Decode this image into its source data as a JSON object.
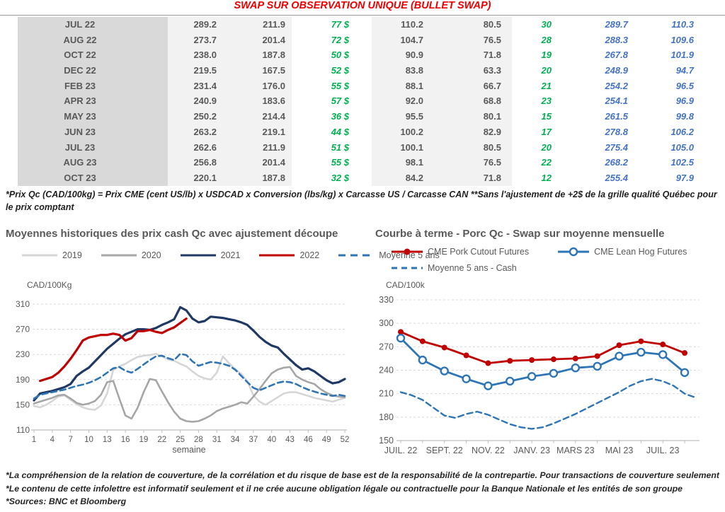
{
  "title": "SWAP SUR OBSERVATION UNIQUE (BULLET SWAP)",
  "colors": {
    "title_red": "#EE0000",
    "green": "#00B050",
    "blue": "#4472C4",
    "table_month_bg": "#D9D9D9",
    "table_light_bg": "#F2F2F2",
    "table_text": "#595959",
    "grid": "#D9D9D9",
    "axis": "#BFBFBF"
  },
  "table": {
    "rows": [
      [
        "JUL 22",
        "289.2",
        "211.9",
        "77 $",
        "110.2",
        "80.5",
        "30",
        "289.7",
        "110.3"
      ],
      [
        "AUG 22",
        "273.7",
        "201.4",
        "72 $",
        "104.7",
        "76.5",
        "28",
        "288.3",
        "109.6"
      ],
      [
        "OCT 22",
        "238.0",
        "187.8",
        "50 $",
        "90.9",
        "71.8",
        "19",
        "267.8",
        "101.9"
      ],
      [
        "DEC 22",
        "219.5",
        "167.5",
        "52 $",
        "83.8",
        "63.3",
        "20",
        "248.9",
        "94.7"
      ],
      [
        "FEB 23",
        "231.4",
        "176.0",
        "55 $",
        "88.1",
        "66.7",
        "21",
        "254.2",
        "96.5"
      ],
      [
        "APR 23",
        "240.9",
        "183.6",
        "57 $",
        "92.0",
        "68.8",
        "23",
        "254.1",
        "96.9"
      ],
      [
        "MAY 23",
        "250.2",
        "214.4",
        "36 $",
        "95.5",
        "80.1",
        "15",
        "261.5",
        "99.8"
      ],
      [
        "JUN 23",
        "263.2",
        "219.1",
        "44 $",
        "100.2",
        "82.9",
        "17",
        "278.8",
        "106.2"
      ],
      [
        "JUL 23",
        "262.6",
        "211.9",
        "51 $",
        "100.1",
        "80.5",
        "20",
        "275.4",
        "105.0"
      ],
      [
        "AUG 23",
        "256.8",
        "201.4",
        "55 $",
        "98.1",
        "76.5",
        "22",
        "268.2",
        "102.5"
      ],
      [
        "OCT 23",
        "220.1",
        "187.8",
        "32 $",
        "84.2",
        "71.8",
        "12",
        "255.4",
        "97.9"
      ]
    ]
  },
  "footnote_top": "*Prix Qc (CAD/100kg) = Prix CME (cent US/lb) x USDCAD x Conversion (lbs/kg) x Carcasse US / Carcasse CAN **Sans l'ajustement de +2$ de la grille qualité Québec pour le prix comptant",
  "chart_data": [
    {
      "type": "line",
      "title": "Moyennes historiques des prix cash Qc avec ajustement découpe",
      "ylabel": "CAD/100Kg",
      "xlabel": "semaine",
      "ylim": [
        110,
        310
      ],
      "y_ticks": [
        310,
        270,
        230,
        190,
        150,
        110
      ],
      "x_ticks": [
        1,
        4,
        7,
        10,
        13,
        16,
        19,
        22,
        25,
        28,
        31,
        34,
        37,
        40,
        43,
        46,
        49,
        52
      ],
      "grid": true,
      "legend_position": "top",
      "series": [
        {
          "name": "2019",
          "color": "#D6D6D6",
          "style": "solid",
          "width": 2.6,
          "values": [
            148,
            146,
            150,
            156,
            163,
            165,
            158,
            151,
            146,
            143,
            142,
            149,
            168,
            205,
            211,
            215,
            221,
            226,
            228,
            229,
            231,
            227,
            222,
            220,
            215,
            211,
            203,
            196,
            192,
            190,
            201,
            227,
            216,
            207,
            199,
            188,
            165,
            155,
            150,
            156,
            162,
            168,
            170,
            170,
            167,
            164,
            161,
            159,
            157,
            155,
            158,
            161
          ]
        },
        {
          "name": "2020",
          "color": "#A6A6A6",
          "style": "solid",
          "width": 2.6,
          "values": [
            152,
            155,
            158,
            161,
            165,
            166,
            160,
            153,
            150,
            152,
            156,
            166,
            186,
            188,
            160,
            133,
            128,
            145,
            170,
            191,
            189,
            171,
            154,
            139,
            128,
            124,
            123,
            124,
            128,
            133,
            140,
            144,
            147,
            150,
            154,
            152,
            163,
            175,
            188,
            200,
            206,
            209,
            210,
            196,
            190,
            186,
            183,
            175,
            169,
            165,
            163,
            162
          ]
        },
        {
          "name": "2021",
          "color": "#1F3864",
          "style": "solid",
          "width": 3.2,
          "values": [
            157,
            168,
            170,
            172,
            175,
            178,
            183,
            196,
            203,
            209,
            219,
            229,
            239,
            247,
            255,
            262,
            266,
            270,
            270,
            269,
            272,
            277,
            281,
            286,
            305,
            300,
            287,
            281,
            283,
            290,
            289,
            288,
            286,
            284,
            281,
            277,
            268,
            258,
            250,
            244,
            241,
            231,
            222,
            213,
            206,
            208,
            203,
            196,
            189,
            184,
            186,
            191
          ]
        },
        {
          "name": "2022",
          "color": "#C00000",
          "style": "solid",
          "width": 3.2,
          "x": [
            2,
            3,
            4,
            5,
            6,
            7,
            8,
            9,
            10,
            11,
            12,
            13,
            14,
            15,
            16,
            17,
            18,
            19,
            20,
            21,
            22,
            23,
            24,
            25,
            26
          ],
          "values": [
            188,
            191,
            194,
            201,
            211,
            223,
            237,
            252,
            257,
            259,
            261,
            261,
            263,
            261,
            252,
            256,
            267,
            267,
            269,
            266,
            264,
            269,
            273,
            280,
            287
          ]
        },
        {
          "name": "Moyenne 5 ans",
          "color": "#2E75B6",
          "style": "dashed",
          "width": 2.6,
          "values": [
            160,
            166,
            168,
            170,
            172,
            174,
            177,
            180,
            182,
            185,
            189,
            194,
            201,
            208,
            210,
            204,
            201,
            207,
            214,
            221,
            227,
            228,
            224,
            221,
            231,
            229,
            219,
            212,
            215,
            218,
            217,
            215,
            212,
            206,
            196,
            186,
            177,
            173,
            177,
            181,
            185,
            187,
            186,
            183,
            178,
            174,
            171,
            168,
            166,
            164,
            166,
            164
          ]
        }
      ]
    },
    {
      "type": "line",
      "title": "Courbe à terme - Porc Qc - Swap sur moyenne mensuelle",
      "ylabel": "CAD/100k",
      "ylim": [
        150,
        330
      ],
      "y_ticks": [
        330,
        300,
        270,
        240,
        210,
        180,
        150
      ],
      "x_labels": [
        "JUIL. 22",
        "SEPT. 22",
        "NOV. 22",
        "JANV. 23",
        "MARS 23",
        "MAI 23",
        "JUIL. 23"
      ],
      "grid": true,
      "legend_position": "top",
      "series": [
        {
          "name": "CME Pork Cutout Futures",
          "color": "#C00000",
          "style": "solid",
          "width": 2.8,
          "marker": "filled-circle",
          "x": [
            0,
            1,
            2,
            3,
            4,
            5,
            6,
            7,
            8,
            9,
            10,
            11,
            12,
            13
          ],
          "values": [
            289,
            277,
            269,
            259,
            249,
            252,
            253,
            254,
            255,
            258,
            272,
            277,
            273,
            262
          ]
        },
        {
          "name": "CME Lean Hog Futures",
          "color": "#2E75B6",
          "style": "solid",
          "width": 2.8,
          "marker": "open-circle",
          "x": [
            0,
            1,
            2,
            3,
            4,
            5,
            6,
            7,
            8,
            9,
            10,
            11,
            12,
            13
          ],
          "values": [
            281,
            253,
            239,
            229,
            220,
            226,
            232,
            236,
            243,
            245,
            258,
            263,
            260,
            237
          ]
        },
        {
          "name": "Moyenne 5 ans - Cash",
          "color": "#2E75B6",
          "style": "dashed",
          "width": 2.4,
          "x": [
            0,
            0.5,
            1,
            1.5,
            2,
            2.5,
            3,
            3.5,
            4,
            4.5,
            5,
            5.5,
            6,
            6.5,
            7,
            7.5,
            8,
            8.5,
            9,
            9.5,
            10,
            10.5,
            11,
            11.5,
            12,
            12.5,
            13,
            13.5
          ],
          "values": [
            212,
            208,
            202,
            192,
            182,
            179,
            184,
            187,
            183,
            177,
            171,
            167,
            165,
            167,
            172,
            178,
            184,
            191,
            198,
            205,
            212,
            220,
            226,
            229,
            226,
            220,
            210,
            205
          ]
        }
      ]
    }
  ],
  "footnotes_bottom": [
    "*La compréhension de la relation de couverture, de la corrélation et du risque de base est de la responsabilité de la contrepartie. Pour transactions de couverture seulement",
    "*Le contenu de cette infolettre est informatif seulement et il ne crée aucune obligation légale ou contractuelle pour la Banque Nationale et les entités de son groupe",
    "*Sources: BNC et Bloomberg"
  ]
}
